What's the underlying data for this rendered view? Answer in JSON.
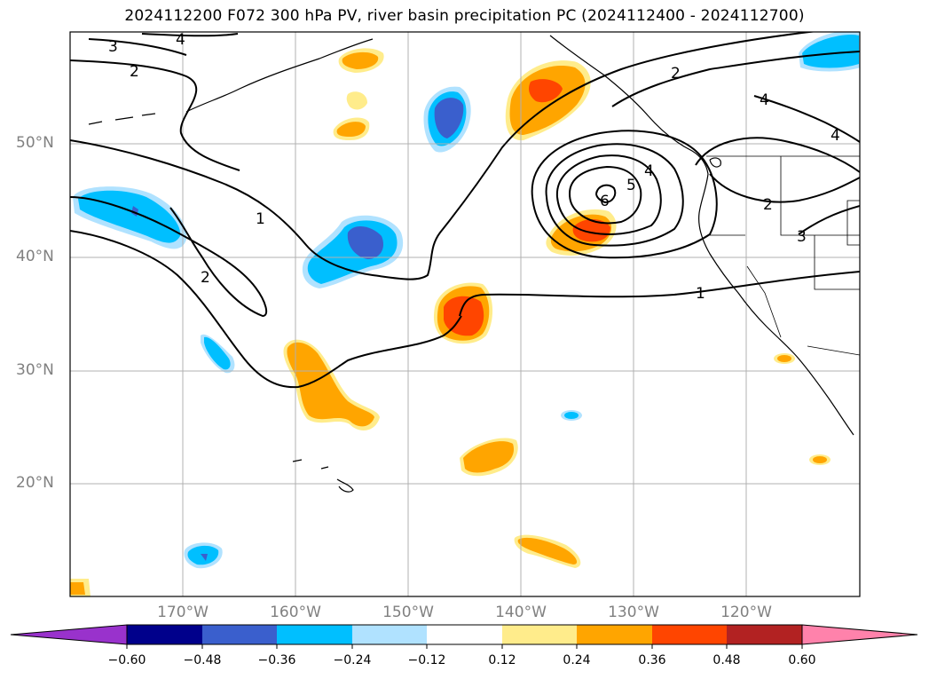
{
  "title": "2024112200 F072 300 hPa PV, river basin precipitation PC (2024112400 - 2024112700)",
  "map": {
    "latitude_labels": [
      "50°N",
      "40°N",
      "30°N",
      "20°N"
    ],
    "longitude_labels": [
      "170°W",
      "160°W",
      "150°W",
      "140°W",
      "130°W",
      "120°W"
    ],
    "gridlines": true,
    "pv_contour_labels": [
      "1",
      "2",
      "3",
      "4",
      "5",
      "6"
    ]
  },
  "colorbar": {
    "tick_labels": [
      "−0.60",
      "−0.48",
      "−0.36",
      "−0.24",
      "−0.12",
      "0.12",
      "0.24",
      "0.36",
      "0.48",
      "0.60"
    ],
    "colors": [
      "#9932cc",
      "#00008b",
      "#3a5fcd",
      "#00bfff",
      "#b0e2ff",
      "#ffffff",
      "#ffec8b",
      "#ffa500",
      "#ff4500",
      "#b22222",
      "#ff82ab"
    ],
    "extend": "both"
  },
  "colors": {
    "neg_light": "#b0e2ff",
    "neg_mid": "#00bfff",
    "neg_strong": "#3a5fcd",
    "neg_extreme": "#9932cc",
    "pos_light": "#ffec8b",
    "pos_mid": "#ffa500",
    "pos_strong": "#ff4500",
    "grid": "#b0b0b0",
    "tick_text": "#808080"
  }
}
